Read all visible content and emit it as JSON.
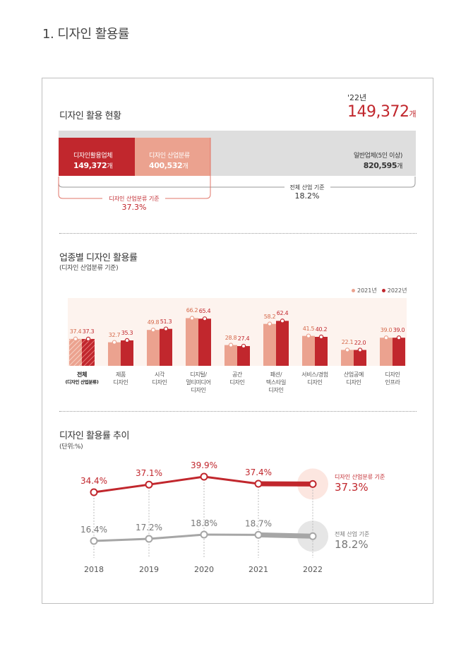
{
  "page": {
    "title": "1. 디자인 활용률"
  },
  "status": {
    "title": "디자인 활용 현황",
    "year": "'22년",
    "total": "149,372",
    "total_unit": "개",
    "segments": [
      {
        "label": "디자인활용업체",
        "value": "149,372",
        "unit": "개"
      },
      {
        "label": "디자인 산업분류",
        "value": "400,532",
        "unit": "개"
      },
      {
        "label": "일반업체(5인 이상)",
        "value": "820,595",
        "unit": "개"
      }
    ],
    "bracket_left": {
      "label": "디자인 산업분류 기준",
      "value": "37.3%"
    },
    "bracket_right": {
      "label": "전체 산업 기준",
      "value": "18.2%"
    },
    "colors": {
      "dark": "#c1272d",
      "light": "#eba28f",
      "gray": "#dedede"
    }
  },
  "industry": {
    "title": "업종별 디자인 활용률",
    "subtitle": "(디자인 산업분류 기준)",
    "legend": [
      "2021년",
      "2022년"
    ]
  },
  "trend": {
    "title": "디자인 활용률 추이",
    "subtitle": "(단위:%)",
    "end_label_red": {
      "label": "디자인 산업분류 기준",
      "value": "37.3%"
    },
    "end_label_gray": {
      "label": "전체 산업 기준",
      "value": "18.2%"
    }
  },
  "chart_data": [
    {
      "type": "bar",
      "title": "업종별 디자인 활용률",
      "categories": [
        [
          "전체",
          "(디자인 산업분류)"
        ],
        [
          "제품",
          "디자인"
        ],
        [
          "시각",
          "디자인"
        ],
        [
          "디지털/",
          "멀티미디어",
          "디자인"
        ],
        [
          "공간",
          "디자인"
        ],
        [
          "패션/",
          "텍스타일",
          "디자인"
        ],
        [
          "서비스/경험",
          "디자인"
        ],
        [
          "산업공예",
          "디자인"
        ],
        [
          "디자인",
          "인프라"
        ]
      ],
      "series": [
        {
          "name": "2021년",
          "color": "#eba28f",
          "values": [
            37.4,
            32.7,
            49.8,
            66.2,
            28.8,
            58.2,
            41.5,
            22.1,
            39.0
          ]
        },
        {
          "name": "2022년",
          "color": "#c1272d",
          "values": [
            37.3,
            35.3,
            51.3,
            65.4,
            27.4,
            62.4,
            40.2,
            22.0,
            39.0
          ]
        }
      ],
      "value_labels": [
        [
          "37.4",
          "32.7",
          "49.8",
          "66.2",
          "28.8",
          "58.2",
          "41.5",
          "22.1",
          "39.0"
        ],
        [
          "37.3",
          "35.3",
          "51.3",
          "65.4",
          "27.4",
          "62.4",
          "40.2",
          "22.0",
          "39.0"
        ]
      ],
      "legend": "top-right",
      "ylim": [
        0,
        80
      ]
    },
    {
      "type": "line",
      "title": "디자인 활용률 추이",
      "x": [
        "2018",
        "2019",
        "2020",
        "2021",
        "2022"
      ],
      "series": [
        {
          "name": "디자인 산업분류 기준",
          "color": "#c1272d",
          "values": [
            34.4,
            37.1,
            39.9,
            37.4,
            37.3
          ],
          "labels": [
            "34.4%",
            "37.1%",
            "39.9%",
            "37.4%",
            ""
          ]
        },
        {
          "name": "전체 산업 기준",
          "color": "#a6a6a6",
          "values": [
            16.4,
            17.2,
            18.8,
            18.7,
            18.2
          ],
          "labels": [
            "16.4%",
            "17.2%",
            "18.8%",
            "18.7%",
            ""
          ]
        }
      ]
    }
  ]
}
